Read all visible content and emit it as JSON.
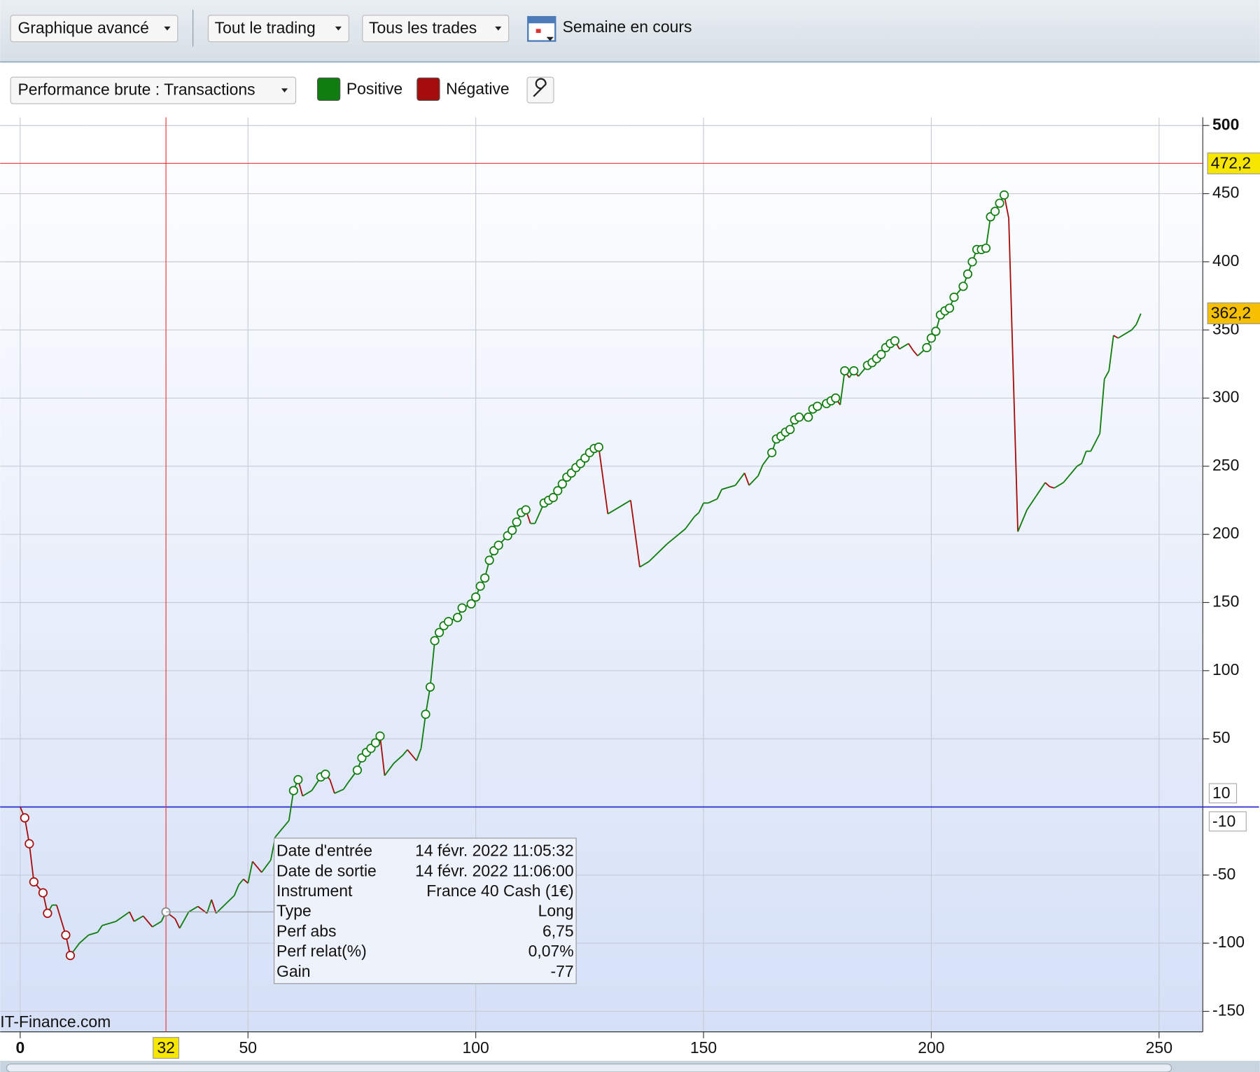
{
  "toolbar": {
    "buttons": [
      "Graphique avancé",
      "Tout le trading",
      "Tous les trades"
    ],
    "period": "Semaine en cours",
    "view": "Performance brute : Transactions"
  },
  "chart_data": {
    "type": "line",
    "series": [
      {
        "name": "Positive",
        "color": "#0f7d10"
      },
      {
        "name": "Négative",
        "color": "#a50d0d"
      }
    ],
    "x": [
      0,
      1,
      2,
      3,
      5,
      6,
      7,
      8,
      10,
      11,
      13,
      15,
      17,
      18,
      21,
      24,
      25,
      27,
      29,
      31,
      32,
      34,
      35,
      37,
      39,
      41,
      42,
      43,
      47,
      48,
      49,
      50,
      51,
      53,
      55,
      56,
      59,
      60,
      61,
      62,
      64,
      66,
      67,
      68,
      69,
      71,
      72,
      74,
      75,
      76,
      77,
      78,
      79,
      80,
      82,
      84,
      85,
      87,
      88,
      89,
      90,
      91,
      92,
      93,
      94,
      96,
      97,
      99,
      100,
      101,
      102,
      103,
      104,
      105,
      107,
      108,
      109,
      110,
      111,
      112,
      113,
      115,
      116,
      117,
      118,
      119,
      120,
      121,
      122,
      123,
      124,
      125,
      126,
      127,
      129,
      134,
      136,
      138,
      142,
      146,
      148,
      149,
      150,
      151,
      153,
      154,
      157,
      159,
      160,
      162,
      163,
      165,
      166,
      167,
      168,
      169,
      170,
      171,
      173,
      174,
      175,
      177,
      178,
      179,
      180,
      181,
      182,
      183,
      184,
      186,
      187,
      188,
      189,
      190,
      191,
      192,
      193,
      195,
      196,
      197,
      199,
      200,
      201,
      202,
      203,
      204,
      205,
      207,
      208,
      209,
      210,
      211,
      212,
      213,
      214,
      215,
      216,
      217,
      219,
      221,
      223,
      225,
      226,
      227,
      229,
      230,
      232,
      233,
      234,
      235,
      237,
      238,
      239,
      240,
      241,
      243,
      244,
      245,
      246
    ],
    "values": [
      0,
      -8,
      -27,
      -55,
      -63,
      -78,
      -72,
      -72,
      -94,
      -109,
      -100,
      -94,
      -92,
      -87,
      -84,
      -77,
      -84,
      -80,
      -88,
      -84,
      -77,
      -82,
      -89,
      -77,
      -73,
      -78,
      -68,
      -78,
      -65,
      -57,
      -53,
      -56,
      -40,
      -48,
      -39,
      -22,
      -10,
      12,
      20,
      8,
      12,
      22,
      24,
      20,
      10,
      13,
      18,
      27,
      36,
      40,
      43,
      47,
      52,
      23,
      32,
      38,
      42,
      34,
      43,
      68,
      88,
      122,
      128,
      133,
      136,
      139,
      146,
      149,
      154,
      162,
      168,
      181,
      188,
      192,
      199,
      203,
      209,
      216,
      218,
      208,
      208,
      223,
      225,
      227,
      232,
      237,
      242,
      245,
      249,
      252,
      256,
      260,
      263,
      264,
      215,
      225,
      176,
      180,
      193,
      204,
      213,
      216,
      223,
      223,
      226,
      233,
      236,
      245,
      236,
      243,
      251,
      260,
      270,
      272,
      275,
      277,
      284,
      286,
      286,
      292,
      294,
      296,
      298,
      300,
      295,
      320,
      315,
      320,
      316,
      324,
      326,
      329,
      332,
      337,
      340,
      342,
      336,
      340,
      335,
      331,
      337,
      344,
      349,
      361,
      364,
      366,
      374,
      382,
      391,
      400,
      409,
      409,
      410,
      433,
      437,
      443,
      449,
      432,
      202,
      218,
      228,
      238,
      235,
      234,
      238,
      242,
      250,
      252,
      261,
      261,
      274,
      314,
      320,
      346,
      344,
      348,
      350,
      354,
      362
    ],
    "markers": [
      1,
      2,
      3,
      5,
      6,
      10,
      11,
      32,
      60,
      61,
      66,
      67,
      74,
      75,
      76,
      77,
      78,
      79,
      89,
      90,
      91,
      92,
      93,
      94,
      96,
      97,
      99,
      100,
      101,
      102,
      103,
      104,
      105,
      107,
      108,
      109,
      110,
      111,
      115,
      116,
      117,
      118,
      119,
      120,
      121,
      122,
      123,
      124,
      125,
      126,
      127,
      165,
      166,
      167,
      168,
      169,
      170,
      171,
      173,
      174,
      175,
      177,
      178,
      179,
      181,
      183,
      186,
      187,
      188,
      189,
      190,
      191,
      192,
      199,
      200,
      201,
      202,
      203,
      204,
      205,
      207,
      208,
      209,
      210,
      211,
      212,
      213,
      214,
      215,
      216
    ],
    "xlim": [
      -4.4,
      259.6
    ],
    "ylim": [
      -165,
      506
    ],
    "xticks": [
      0,
      50,
      100,
      150,
      200,
      250
    ],
    "yticks": [
      500,
      450,
      400,
      350,
      300,
      250,
      200,
      150,
      100,
      50,
      -50,
      -100,
      -150
    ],
    "grid": true,
    "crosshair_x": 32,
    "crosshair_y": {
      "value": 472.2,
      "label": "472,2"
    },
    "last_value": {
      "value": 362.2,
      "label": "362,2"
    },
    "zero_labels": [
      "10",
      "-10"
    ],
    "watermark": "IT-Finance.com",
    "tooltip": [
      [
        "Date d'entrée",
        "14 févr. 2022 11:05:32"
      ],
      [
        "Date de sortie",
        "14 févr. 2022 11:06:00"
      ],
      [
        "Instrument",
        "France 40 Cash (1€)"
      ],
      [
        "Type",
        "Long"
      ],
      [
        "Perf abs",
        "6,75"
      ],
      [
        "Perf relat(%)",
        "0,07%"
      ],
      [
        "Gain",
        "-77"
      ]
    ]
  }
}
